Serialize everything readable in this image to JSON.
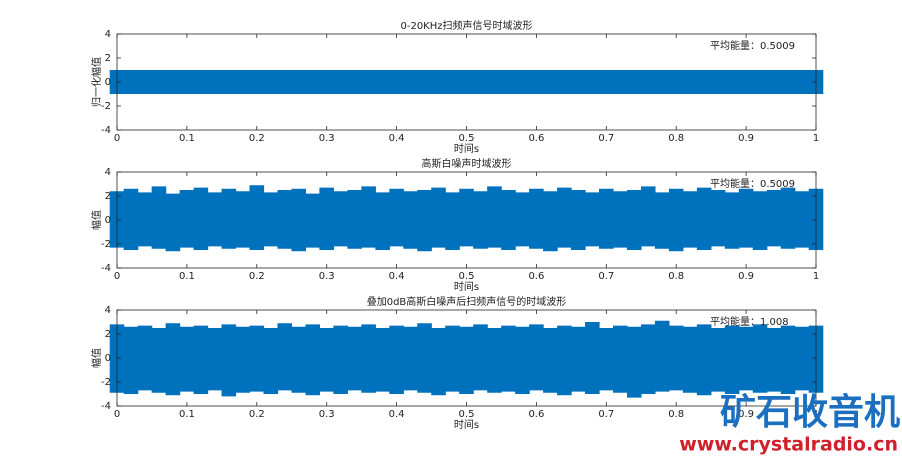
{
  "chart_data": [
    {
      "type": "area",
      "title": "0-20KHz扫频声信号时域波形",
      "xlabel": "时间s",
      "ylabel": "归一化幅值",
      "annotation": "平均能量：0.5009",
      "color": "#0072bd",
      "x": [
        0,
        0.02,
        0.04,
        0.06,
        0.08,
        0.1,
        0.12,
        0.14,
        0.16,
        0.18,
        0.2,
        0.22,
        0.24,
        0.26,
        0.28,
        0.3,
        0.32,
        0.34,
        0.36,
        0.38,
        0.4,
        0.42,
        0.44,
        0.46,
        0.48,
        0.5,
        0.52,
        0.54,
        0.56,
        0.58,
        0.6,
        0.62,
        0.64,
        0.66,
        0.68,
        0.7,
        0.72,
        0.74,
        0.76,
        0.78,
        0.8,
        0.82,
        0.84,
        0.86,
        0.88,
        0.9,
        0.92,
        0.94,
        0.96,
        0.98,
        1
      ],
      "upper": [
        1,
        1,
        1,
        1,
        1,
        1,
        1,
        1,
        1,
        1,
        1,
        1,
        1,
        1,
        1,
        1,
        1,
        1,
        1,
        1,
        1,
        1,
        1,
        1,
        1,
        1,
        1,
        1,
        1,
        1,
        1,
        1,
        1,
        1,
        1,
        1,
        1,
        1,
        1,
        1,
        1,
        1,
        1,
        1,
        1,
        1,
        1,
        1,
        1,
        1,
        1
      ],
      "lower": [
        -1,
        -1,
        -1,
        -1,
        -1,
        -1,
        -1,
        -1,
        -1,
        -1,
        -1,
        -1,
        -1,
        -1,
        -1,
        -1,
        -1,
        -1,
        -1,
        -1,
        -1,
        -1,
        -1,
        -1,
        -1,
        -1,
        -1,
        -1,
        -1,
        -1,
        -1,
        -1,
        -1,
        -1,
        -1,
        -1,
        -1,
        -1,
        -1,
        -1,
        -1,
        -1,
        -1,
        -1,
        -1,
        -1,
        -1,
        -1,
        -1,
        -1,
        -1
      ],
      "xlim": [
        0,
        1
      ],
      "ylim": [
        -4,
        4
      ],
      "xticks": [
        0,
        0.1,
        0.2,
        0.3,
        0.4,
        0.5,
        0.6,
        0.7,
        0.8,
        0.9,
        1
      ],
      "yticks": [
        -4,
        -2,
        0,
        2,
        4
      ]
    },
    {
      "type": "area",
      "title": "高斯白噪声时域波形",
      "xlabel": "时间s",
      "ylabel": "幅值",
      "annotation": "平均能量：0.5009",
      "color": "#0072bd",
      "x": [
        0,
        0.02,
        0.04,
        0.06,
        0.08,
        0.1,
        0.12,
        0.14,
        0.16,
        0.18,
        0.2,
        0.22,
        0.24,
        0.26,
        0.28,
        0.3,
        0.32,
        0.34,
        0.36,
        0.38,
        0.4,
        0.42,
        0.44,
        0.46,
        0.48,
        0.5,
        0.52,
        0.54,
        0.56,
        0.58,
        0.6,
        0.62,
        0.64,
        0.66,
        0.68,
        0.7,
        0.72,
        0.74,
        0.76,
        0.78,
        0.8,
        0.82,
        0.84,
        0.86,
        0.88,
        0.9,
        0.92,
        0.94,
        0.96,
        0.98,
        1
      ],
      "upper": [
        2.4,
        2.6,
        2.3,
        2.8,
        2.2,
        2.5,
        2.7,
        2.3,
        2.6,
        2.4,
        2.9,
        2.3,
        2.5,
        2.6,
        2.2,
        2.7,
        2.4,
        2.5,
        2.8,
        2.3,
        2.6,
        2.4,
        2.5,
        2.7,
        2.3,
        2.6,
        2.4,
        2.8,
        2.5,
        2.3,
        2.6,
        2.4,
        2.7,
        2.5,
        2.3,
        2.6,
        2.4,
        2.5,
        2.8,
        2.3,
        2.6,
        2.4,
        2.7,
        2.5,
        2.3,
        2.6,
        2.4,
        2.5,
        2.7,
        2.4,
        2.6
      ],
      "lower": [
        -2.3,
        -2.5,
        -2.2,
        -2.4,
        -2.6,
        -2.3,
        -2.5,
        -2.2,
        -2.4,
        -2.3,
        -2.5,
        -2.2,
        -2.4,
        -2.6,
        -2.3,
        -2.5,
        -2.2,
        -2.4,
        -2.3,
        -2.5,
        -2.2,
        -2.4,
        -2.6,
        -2.3,
        -2.5,
        -2.2,
        -2.4,
        -2.3,
        -2.5,
        -2.2,
        -2.4,
        -2.6,
        -2.3,
        -2.5,
        -2.2,
        -2.4,
        -2.3,
        -2.5,
        -2.2,
        -2.4,
        -2.6,
        -2.3,
        -2.5,
        -2.2,
        -2.4,
        -2.3,
        -2.5,
        -2.2,
        -2.4,
        -2.3,
        -2.5
      ],
      "xlim": [
        0,
        1
      ],
      "ylim": [
        -4,
        4
      ],
      "xticks": [
        0,
        0.1,
        0.2,
        0.3,
        0.4,
        0.5,
        0.6,
        0.7,
        0.8,
        0.9,
        1
      ],
      "yticks": [
        -4,
        -2,
        0,
        2,
        4
      ]
    },
    {
      "type": "area",
      "title": "叠加0dB高斯白噪声后扫频声信号的时域波形",
      "xlabel": "时间s",
      "ylabel": "幅值",
      "annotation": "平均能量：1.008",
      "color": "#0072bd",
      "x": [
        0,
        0.02,
        0.04,
        0.06,
        0.08,
        0.1,
        0.12,
        0.14,
        0.16,
        0.18,
        0.2,
        0.22,
        0.24,
        0.26,
        0.28,
        0.3,
        0.32,
        0.34,
        0.36,
        0.38,
        0.4,
        0.42,
        0.44,
        0.46,
        0.48,
        0.5,
        0.52,
        0.54,
        0.56,
        0.58,
        0.6,
        0.62,
        0.64,
        0.66,
        0.68,
        0.7,
        0.72,
        0.74,
        0.76,
        0.78,
        0.8,
        0.82,
        0.84,
        0.86,
        0.88,
        0.9,
        0.92,
        0.94,
        0.96,
        0.98,
        1
      ],
      "upper": [
        2.8,
        2.6,
        2.7,
        2.5,
        2.9,
        2.6,
        2.7,
        2.5,
        2.8,
        2.6,
        2.7,
        2.5,
        2.9,
        2.6,
        2.8,
        2.5,
        2.7,
        2.6,
        2.8,
        2.5,
        2.7,
        2.6,
        2.9,
        2.5,
        2.7,
        2.6,
        2.8,
        2.5,
        2.7,
        2.6,
        2.8,
        2.5,
        2.7,
        2.6,
        3.0,
        2.5,
        2.7,
        2.6,
        2.8,
        3.1,
        2.7,
        2.6,
        2.8,
        2.5,
        2.7,
        2.6,
        2.8,
        2.5,
        2.7,
        2.6,
        2.7
      ],
      "lower": [
        -2.9,
        -3.0,
        -2.7,
        -2.9,
        -3.1,
        -2.8,
        -3.0,
        -2.7,
        -3.2,
        -2.9,
        -2.8,
        -3.0,
        -2.7,
        -2.9,
        -3.1,
        -2.8,
        -3.0,
        -2.7,
        -2.9,
        -2.8,
        -3.0,
        -2.7,
        -2.9,
        -3.1,
        -2.8,
        -3.0,
        -2.7,
        -2.9,
        -2.8,
        -3.0,
        -2.7,
        -2.9,
        -3.1,
        -2.8,
        -3.0,
        -2.7,
        -2.9,
        -3.3,
        -3.0,
        -2.8,
        -2.7,
        -2.9,
        -3.1,
        -2.8,
        -3.0,
        -2.7,
        -2.9,
        -2.8,
        -3.0,
        -2.7,
        -2.9
      ],
      "xlim": [
        0,
        1
      ],
      "ylim": [
        -4,
        4
      ],
      "xticks": [
        0,
        0.1,
        0.2,
        0.3,
        0.4,
        0.5,
        0.6,
        0.7,
        0.8,
        0.9,
        1
      ],
      "yticks": [
        -4,
        -2,
        0,
        2,
        4
      ]
    }
  ],
  "watermark": {
    "brand": "矿石收音机",
    "url": "www.crystalradio.cn"
  }
}
